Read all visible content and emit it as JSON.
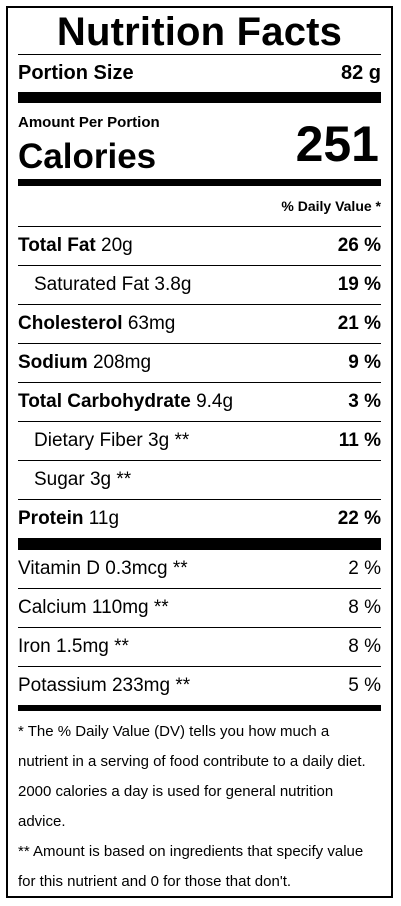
{
  "title": "Nutrition Facts",
  "portion": {
    "label": "Portion Size",
    "value": "82 g"
  },
  "amount_per_portion": "Amount Per Portion",
  "calories": {
    "label": "Calories",
    "value": "251"
  },
  "daily_value_header": "% Daily Value *",
  "nutrients": [
    {
      "name": "Total Fat",
      "amount": "20g",
      "dv": "26 %"
    },
    {
      "name": "Saturated Fat",
      "amount": "3.8g",
      "dv": "19 %"
    },
    {
      "name": "Cholesterol",
      "amount": "63mg",
      "dv": "21 %"
    },
    {
      "name": "Sodium",
      "amount": "208mg",
      "dv": "9 %"
    },
    {
      "name": "Total Carbohydrate",
      "amount": "9.4g",
      "dv": "3 %"
    },
    {
      "name": "Dietary Fiber",
      "amount": "3g **",
      "dv": "11 %"
    },
    {
      "name": "Sugar",
      "amount": "3g **",
      "dv": ""
    },
    {
      "name": "Protein",
      "amount": "11g",
      "dv": "22 %"
    }
  ],
  "vitamins": [
    {
      "name": "Vitamin D",
      "amount": "0.3mcg **",
      "dv": "2 %"
    },
    {
      "name": "Calcium",
      "amount": "110mg **",
      "dv": "8 %"
    },
    {
      "name": "Iron",
      "amount": "1.5mg **",
      "dv": "8 %"
    },
    {
      "name": "Potassium",
      "amount": "233mg **",
      "dv": "5 %"
    }
  ],
  "footnotes": [
    "* The % Daily Value (DV) tells you how much a nutrient in a serving of food contribute to a daily diet. 2000 calories a day is used for general nutrition advice.",
    "** Amount is based on ingredients that specify value for this nutrient and 0 for those that don't."
  ]
}
